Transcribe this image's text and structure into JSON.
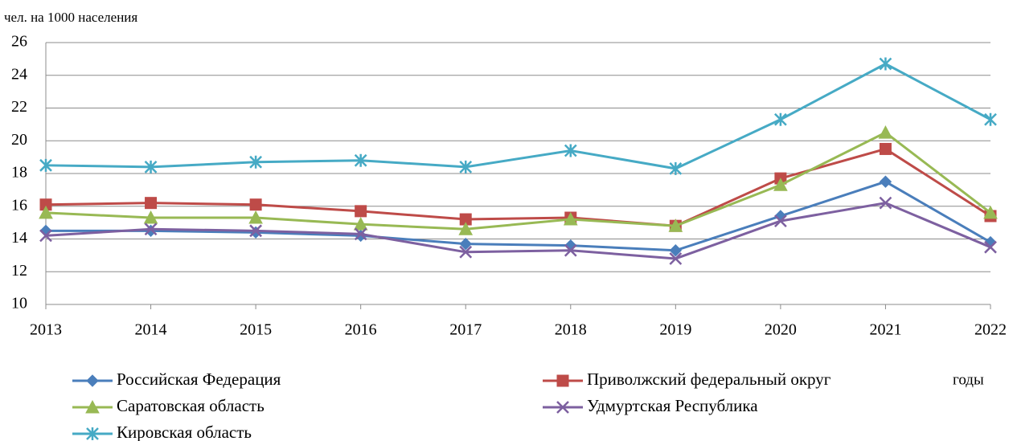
{
  "chart_data": {
    "type": "line",
    "y_label": "чел. на 1000 населения",
    "x_label": "годы",
    "categories": [
      "2013",
      "2014",
      "2015",
      "2016",
      "2017",
      "2018",
      "2019",
      "2020",
      "2021",
      "2022"
    ],
    "series": [
      {
        "name": "Российская Федерация",
        "color": "#4a7ebb",
        "marker": "diamond",
        "values": [
          14.5,
          14.5,
          14.4,
          14.2,
          13.7,
          13.6,
          13.3,
          15.4,
          17.5,
          13.8
        ]
      },
      {
        "name": "Приволжский федеральный округ",
        "color": "#be4b48",
        "marker": "square",
        "values": [
          16.1,
          16.2,
          16.1,
          15.7,
          15.2,
          15.3,
          14.8,
          17.7,
          19.5,
          15.4
        ]
      },
      {
        "name": "Саратовская область",
        "color": "#98b954",
        "marker": "triangle",
        "values": [
          15.6,
          15.3,
          15.3,
          14.9,
          14.6,
          15.2,
          14.8,
          17.3,
          20.5,
          15.6
        ]
      },
      {
        "name": "Удмуртская Республика",
        "color": "#7d60a0",
        "marker": "x",
        "values": [
          14.2,
          14.6,
          14.5,
          14.3,
          13.2,
          13.3,
          12.8,
          15.1,
          16.2,
          13.5
        ]
      },
      {
        "name": "Кировская область",
        "color": "#46aac5",
        "marker": "star",
        "values": [
          18.5,
          18.4,
          18.7,
          18.8,
          18.4,
          19.4,
          18.3,
          21.3,
          24.7,
          21.3
        ]
      }
    ],
    "ylim": [
      10,
      26
    ],
    "yticks": [
      10,
      12,
      14,
      16,
      18,
      20,
      22,
      24,
      26
    ],
    "grid": true,
    "legend": "bottom"
  }
}
